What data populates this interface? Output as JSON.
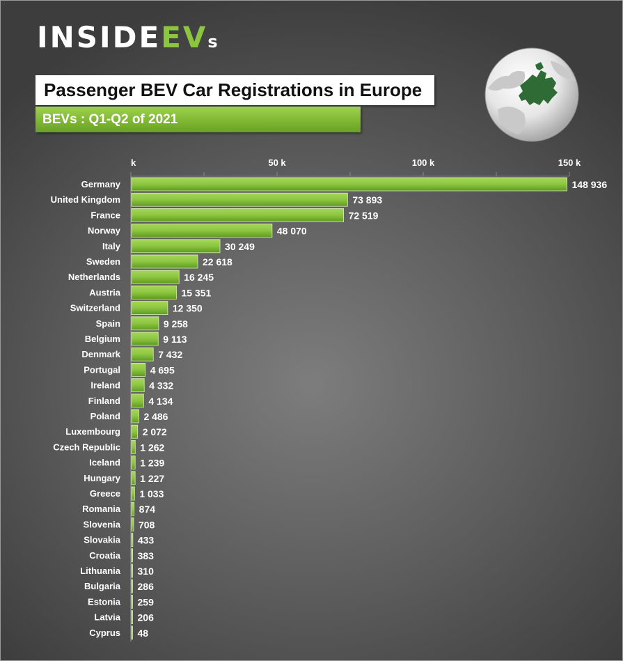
{
  "brand": {
    "part1": "INSIDE",
    "part2": "EV",
    "part3": "s"
  },
  "title": "Passenger BEV Car Registrations in Europe",
  "subtitle": "BEVs : Q1-Q2  of 2021",
  "colors": {
    "bar": "#8cc63f",
    "bar_dark": "#5e9a22",
    "logo_accent": "#8cc63f",
    "globe_land": "#2f6b34"
  },
  "icons": {
    "globe": "europe-globe-icon"
  },
  "chart_data": {
    "type": "bar",
    "orientation": "horizontal",
    "title": "Passenger BEV Car Registrations in Europe",
    "subtitle": "BEVs : Q1-Q2  of 2021",
    "xlim": [
      0,
      150000
    ],
    "x_ticks": [
      0,
      50000,
      100000,
      150000
    ],
    "x_tick_labels": [
      "k",
      "50 k",
      "100 k",
      "150 k"
    ],
    "x_axis_position": "top",
    "categories": [
      "Germany",
      "United Kingdom",
      "France",
      "Norway",
      "Italy",
      "Sweden",
      "Netherlands",
      "Austria",
      "Switzerland",
      "Spain",
      "Belgium",
      "Denmark",
      "Portugal",
      "Ireland",
      "Finland",
      "Poland",
      "Luxembourg",
      "Czech Republic",
      "Iceland",
      "Hungary",
      "Greece",
      "Romania",
      "Slovenia",
      "Slovakia",
      "Croatia",
      "Lithuania",
      "Bulgaria",
      "Estonia",
      "Latvia",
      "Cyprus"
    ],
    "values": [
      148936,
      73893,
      72519,
      48070,
      30249,
      22618,
      16245,
      15351,
      12350,
      9258,
      9113,
      7432,
      4695,
      4332,
      4134,
      2486,
      2072,
      1262,
      1239,
      1227,
      1033,
      874,
      708,
      433,
      383,
      310,
      286,
      259,
      206,
      48
    ],
    "value_labels": [
      "148 936",
      "73 893",
      "72 519",
      "48 070",
      "30 249",
      "22 618",
      "16 245",
      "15 351",
      "12 350",
      "9 258",
      "9 113",
      "7 432",
      "4 695",
      "4 332",
      "4 134",
      "2 486",
      "2 072",
      "1 262",
      "1 239",
      "1 227",
      "1 033",
      "874",
      "708",
      "433",
      "383",
      "310",
      "286",
      "259",
      "206",
      "48"
    ],
    "grid": false,
    "legend": "none"
  }
}
